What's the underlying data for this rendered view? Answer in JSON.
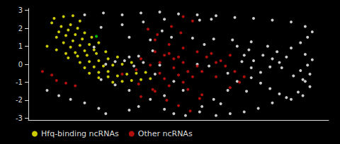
{
  "chart_data": {
    "type": "scatter",
    "xlim": [
      -3.1,
      3.3
    ],
    "ylim": [
      -3.1,
      3.1
    ],
    "yticks": [
      -3,
      -2,
      -1,
      0,
      1,
      2,
      3
    ],
    "tick_labels": "y",
    "grid": false,
    "legend": "lower left",
    "series": [
      {
        "color": "white",
        "values": [
          [
            -1.9,
            2.75
          ],
          [
            -1.5,
            2.85
          ],
          [
            -1.1,
            2.75
          ],
          [
            -0.7,
            2.85
          ],
          [
            -0.3,
            2.9
          ],
          [
            0.1,
            2.8
          ],
          [
            0.5,
            2.75
          ],
          [
            0.9,
            2.7
          ],
          [
            1.3,
            2.6
          ],
          [
            1.7,
            2.55
          ],
          [
            2.1,
            2.45
          ],
          [
            2.5,
            2.35
          ],
          [
            2.8,
            2.1
          ],
          [
            2.95,
            1.8
          ],
          [
            2.85,
            1.5
          ],
          [
            2.7,
            1.2
          ],
          [
            2.5,
            0.9
          ],
          [
            2.8,
            0.55
          ],
          [
            2.95,
            0.25
          ],
          [
            2.85,
            -0.05
          ],
          [
            2.7,
            -0.35
          ],
          [
            2.55,
            -0.65
          ],
          [
            2.8,
            -0.95
          ],
          [
            2.9,
            -1.25
          ],
          [
            2.65,
            -1.55
          ],
          [
            2.4,
            -1.85
          ],
          [
            2.1,
            -2.15
          ],
          [
            1.8,
            -2.45
          ],
          [
            1.5,
            -2.65
          ],
          [
            1.2,
            -2.75
          ],
          [
            0.9,
            -2.85
          ],
          [
            0.55,
            -2.65
          ],
          [
            0.25,
            -2.85
          ],
          [
            -0.2,
            2.5
          ],
          [
            -0.65,
            2.35
          ],
          [
            -1.1,
            2.2
          ],
          [
            -1.55,
            2.05
          ],
          [
            -0.95,
            1.5
          ],
          [
            -0.5,
            1.35
          ],
          [
            -0.05,
            1.5
          ],
          [
            0.4,
            1.45
          ],
          [
            0.85,
            1.4
          ],
          [
            1.25,
            1.35
          ],
          [
            1.65,
            1.25
          ],
          [
            2.0,
            1.0
          ],
          [
            2.2,
            0.7
          ],
          [
            2.4,
            0.4
          ],
          [
            2.25,
            0.1
          ],
          [
            2.05,
            -0.15
          ],
          [
            1.85,
            -0.45
          ],
          [
            1.65,
            -0.75
          ],
          [
            1.85,
            -1.05
          ],
          [
            2.05,
            -1.35
          ],
          [
            2.25,
            -1.65
          ],
          [
            -0.45,
            0.75
          ],
          [
            -0.75,
            0.45
          ],
          [
            -0.3,
            -0.05
          ],
          [
            0.5,
            0.0
          ],
          [
            0.75,
            -0.1
          ],
          [
            1.15,
            -0.5
          ],
          [
            1.35,
            -0.95
          ],
          [
            1.15,
            -1.45
          ],
          [
            0.85,
            -1.95
          ],
          [
            0.6,
            -2.35
          ],
          [
            -1.45,
            0.0
          ],
          [
            -1.25,
            0.15
          ],
          [
            -0.95,
            0.4
          ],
          [
            -0.65,
            0.1
          ],
          [
            -0.4,
            -0.55
          ],
          [
            0.0,
            -0.95
          ],
          [
            0.2,
            -1.45
          ],
          [
            -0.2,
            -1.75
          ],
          [
            -0.5,
            -1.95
          ],
          [
            -0.75,
            -2.35
          ],
          [
            1.5,
            0.5
          ],
          [
            1.7,
            0.2
          ],
          [
            1.9,
            0.5
          ],
          [
            1.6,
            0.8
          ],
          [
            1.35,
            1.0
          ],
          [
            -2.7,
            -1.45
          ],
          [
            -2.45,
            -1.75
          ],
          [
            -2.2,
            -1.95
          ],
          [
            -1.9,
            -2.15
          ],
          [
            -1.6,
            -2.45
          ],
          [
            2.9,
            -0.55
          ],
          [
            2.75,
            -0.85
          ],
          [
            -0.95,
            -1.45
          ],
          [
            -1.25,
            -1.15
          ],
          [
            -1.55,
            -0.85
          ],
          [
            0.0,
            -2.75
          ],
          [
            -0.95,
            -2.55
          ],
          [
            -1.45,
            -2.75
          ],
          [
            2.5,
            -1.95
          ],
          [
            2.75,
            -1.75
          ],
          [
            -1.7,
            0.95
          ],
          [
            -0.2,
            -2.5
          ],
          [
            0.55,
            2.45
          ],
          [
            0.8,
            2.5
          ],
          [
            -0.85,
            -0.1
          ],
          [
            -1.05,
            0.2
          ],
          [
            1.55,
            -1.5
          ],
          [
            1.0,
            -2.2
          ],
          [
            2.3,
            -0.2
          ],
          [
            2.1,
            0.3
          ],
          [
            -0.25,
            1.85
          ],
          [
            0.65,
            1.1
          ],
          [
            1.45,
            0.15
          ],
          [
            1.65,
            -0.2
          ]
        ]
      },
      {
        "name": "Other ncRNAs",
        "color": "#dd1111",
        "values": [
          [
            -2.5,
            -0.9
          ],
          [
            -2.3,
            -1.05
          ],
          [
            -2.1,
            -1.2
          ],
          [
            -2.8,
            -0.4
          ],
          [
            -2.6,
            -0.6
          ],
          [
            -0.4,
            0.7
          ],
          [
            -0.2,
            0.5
          ],
          [
            0.0,
            0.3
          ],
          [
            0.2,
            0.1
          ],
          [
            -0.3,
            0.1
          ],
          [
            0.1,
            0.4
          ],
          [
            -0.1,
            0.6
          ],
          [
            0.5,
            -0.1
          ],
          [
            0.3,
            -0.4
          ],
          [
            0.1,
            -0.6
          ],
          [
            -0.2,
            -0.8
          ],
          [
            0.4,
            -0.7
          ],
          [
            0.2,
            -1.0
          ],
          [
            -0.1,
            -1.2
          ],
          [
            0.2,
            0.9
          ],
          [
            -0.1,
            1.1
          ],
          [
            -0.4,
            1.35
          ],
          [
            0.5,
            0.7
          ],
          [
            0.7,
            0.4
          ],
          [
            0.9,
            0.1
          ],
          [
            0.6,
            -0.4
          ],
          [
            0.9,
            -0.7
          ],
          [
            0.3,
            -1.4
          ],
          [
            0.6,
            -1.7
          ],
          [
            -0.4,
            -1.5
          ],
          [
            -0.7,
            -1.8
          ],
          [
            -0.15,
            -2.0
          ],
          [
            0.1,
            -2.3
          ],
          [
            0.35,
            -2.6
          ],
          [
            0.55,
            -1.9
          ],
          [
            -0.5,
            -0.05
          ],
          [
            -0.8,
            -0.3
          ],
          [
            -1.1,
            -0.55
          ],
          [
            -0.75,
            -1.1
          ],
          [
            -0.45,
            -1.4
          ],
          [
            1.1,
            -0.1
          ],
          [
            1.3,
            -0.4
          ],
          [
            1.5,
            -0.7
          ],
          [
            1.0,
            0.2
          ],
          [
            0.8,
            0.6
          ],
          [
            1.2,
            0.5
          ],
          [
            -0.35,
            1.65
          ],
          [
            -0.55,
            1.95
          ],
          [
            -0.05,
            2.1
          ],
          [
            0.15,
            1.75
          ],
          [
            0.0,
            -0.2
          ],
          [
            -0.3,
            -0.5
          ],
          [
            0.4,
            2.4
          ],
          [
            0.2,
            2.65
          ],
          [
            -0.7,
            0.3
          ],
          [
            1.4,
            -1.0
          ],
          [
            1.2,
            -1.3
          ]
        ]
      },
      {
        "name": "Hfq-binding ncRNAs",
        "color": "yellow",
        "values": [
          [
            -2.55,
            2.55
          ],
          [
            -2.35,
            2.65
          ],
          [
            -2.15,
            2.7
          ],
          [
            -2.6,
            2.3
          ],
          [
            -2.4,
            2.1
          ],
          [
            -2.2,
            2.2
          ],
          [
            -2.0,
            2.4
          ],
          [
            -2.45,
            1.8
          ],
          [
            -2.25,
            1.9
          ],
          [
            -2.05,
            2.0
          ],
          [
            -2.5,
            1.5
          ],
          [
            -2.3,
            1.6
          ],
          [
            -2.1,
            1.65
          ],
          [
            -1.9,
            1.75
          ],
          [
            -2.35,
            1.2
          ],
          [
            -2.15,
            1.3
          ],
          [
            -1.95,
            1.4
          ],
          [
            -1.75,
            1.5
          ],
          [
            -2.2,
            0.95
          ],
          [
            -2.0,
            1.05
          ],
          [
            -1.8,
            1.1
          ],
          [
            -1.6,
            1.2
          ],
          [
            -2.1,
            0.65
          ],
          [
            -1.9,
            0.75
          ],
          [
            -1.7,
            0.8
          ],
          [
            -2.25,
            0.35
          ],
          [
            -2.05,
            0.45
          ],
          [
            -1.85,
            0.5
          ],
          [
            -1.65,
            0.6
          ],
          [
            -1.45,
            0.7
          ],
          [
            -2.0,
            0.1
          ],
          [
            -1.8,
            0.15
          ],
          [
            -1.6,
            0.2
          ],
          [
            -1.4,
            0.3
          ],
          [
            -1.2,
            0.4
          ],
          [
            -1.9,
            -0.2
          ],
          [
            -1.7,
            -0.15
          ],
          [
            -1.5,
            -0.1
          ],
          [
            -1.3,
            -0.05
          ],
          [
            -1.1,
            0.0
          ],
          [
            -0.9,
            0.1
          ],
          [
            -1.8,
            -0.5
          ],
          [
            -1.6,
            -0.45
          ],
          [
            -1.4,
            -0.4
          ],
          [
            -1.6,
            -0.75
          ],
          [
            -1.4,
            -0.7
          ],
          [
            -1.2,
            -0.65
          ],
          [
            -1.0,
            -0.55
          ],
          [
            -0.8,
            -0.5
          ],
          [
            -0.6,
            -0.45
          ],
          [
            -1.3,
            -1.0
          ],
          [
            -1.1,
            -0.95
          ],
          [
            -0.9,
            -0.9
          ],
          [
            -0.7,
            -0.85
          ],
          [
            -0.5,
            -0.8
          ],
          [
            -2.7,
            1.0
          ],
          [
            -2.5,
            0.8
          ],
          [
            -2.3,
            0.6
          ]
        ]
      },
      {
        "color": "#00ee00",
        "values": [
          [
            -1.65,
            1.55
          ]
        ]
      }
    ]
  }
}
